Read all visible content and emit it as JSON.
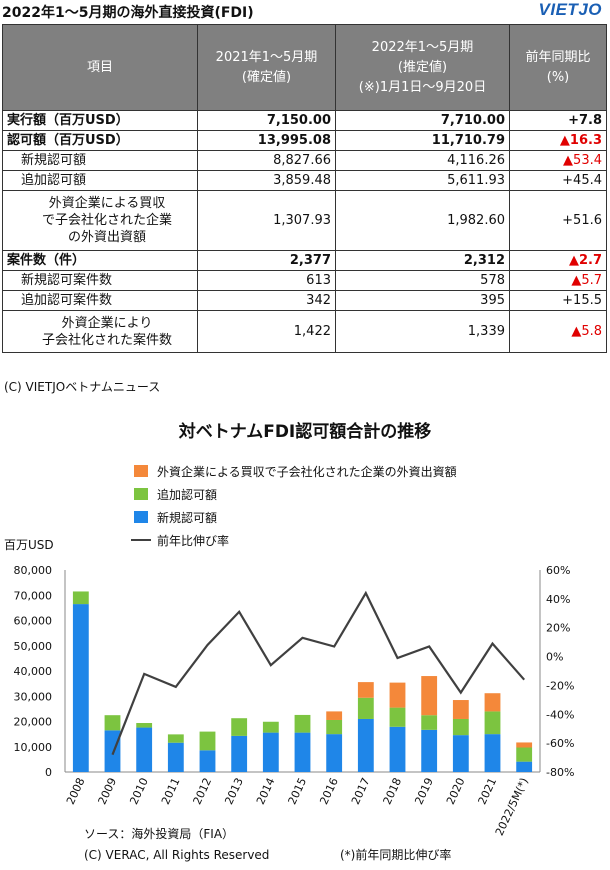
{
  "header": {
    "title": "2022年1～5月期の海外直接投資(FDI)",
    "logo": "VIETJO"
  },
  "table": {
    "columns": [
      "項目",
      "2021年1～5月期\n(確定値)",
      "2022年1～5月期\n(推定値)\n(※)1月1日～9月20日",
      "前年同期比\n(%)"
    ],
    "rows": [
      {
        "label": "実行額（百万USD）",
        "v2021": "7,150.00",
        "v2022": "7,710.00",
        "yoy": "+7.8",
        "bold": true,
        "sub": false,
        "red": false
      },
      {
        "label": "認可額（百万USD）",
        "v2021": "13,995.08",
        "v2022": "11,710.79",
        "yoy": "▲16.3",
        "bold": true,
        "sub": false,
        "red": true
      },
      {
        "label": "新規認可額",
        "v2021": "8,827.66",
        "v2022": "4,116.26",
        "yoy": "▲53.4",
        "bold": false,
        "sub": true,
        "red": true
      },
      {
        "label": "追加認可額",
        "v2021": "3,859.48",
        "v2022": "5,611.93",
        "yoy": "+45.4",
        "bold": false,
        "sub": true,
        "red": false
      },
      {
        "label": "外資企業による買収\nで子会社化された企業\nの外資出資額",
        "v2021": "1,307.93",
        "v2022": "1,982.60",
        "yoy": "+51.6",
        "bold": false,
        "sub": true,
        "red": false
      },
      {
        "label": "案件数（件）",
        "v2021": "2,377",
        "v2022": "2,312",
        "yoy": "▲2.7",
        "bold": true,
        "sub": false,
        "red": true
      },
      {
        "label": "新規認可案件数",
        "v2021": "613",
        "v2022": "578",
        "yoy": "▲5.7",
        "bold": false,
        "sub": true,
        "red": true
      },
      {
        "label": "追加認可案件数",
        "v2021": "342",
        "v2022": "395",
        "yoy": "+15.5",
        "bold": false,
        "sub": true,
        "red": false
      },
      {
        "label": "外資企業により\n子会社化された案件数",
        "v2021": "1,422",
        "v2022": "1,339",
        "yoy": "▲5.8",
        "bold": false,
        "sub": true,
        "red": true
      }
    ],
    "credit": "(C) VIETJOベトナムニュース"
  },
  "chart_data": {
    "type": "bar",
    "title": "対ベトナムFDI認可額合計の推移",
    "ylabel": "百万USD",
    "ylim": [
      0,
      80000
    ],
    "y2lim": [
      -80,
      60
    ],
    "yticks": [
      "0",
      "10,000",
      "20,000",
      "30,000",
      "40,000",
      "50,000",
      "60,000",
      "70,000",
      "80,000"
    ],
    "y2ticks": [
      "-80%",
      "-60%",
      "-40%",
      "-20%",
      "0%",
      "20%",
      "40%",
      "60%"
    ],
    "categories": [
      "2008",
      "2009",
      "2010",
      "2011",
      "2012",
      "2013",
      "2014",
      "2015",
      "2016",
      "2017",
      "2018",
      "2019",
      "2020",
      "2021",
      "2022/5M(*)"
    ],
    "series": [
      {
        "name": "新規認可額",
        "color": "#1f86e8",
        "values": [
          66500,
          16500,
          17600,
          11600,
          8600,
          14300,
          15600,
          15600,
          15000,
          21000,
          17900,
          16700,
          14600,
          15000,
          4100
        ]
      },
      {
        "name": "追加認可額",
        "color": "#7cc440",
        "values": [
          5000,
          6000,
          1800,
          3300,
          7400,
          7000,
          4300,
          7000,
          5600,
          8400,
          7600,
          5800,
          6400,
          9000,
          5600
        ]
      },
      {
        "name": "外資企業による買収で子会社化された企業の外資出資額",
        "color": "#f4883a",
        "values": [
          0,
          0,
          0,
          0,
          0,
          0,
          0,
          0,
          3400,
          6200,
          9900,
          15500,
          7500,
          7200,
          2000
        ]
      },
      {
        "name": "前年比伸び率",
        "color": "#404040",
        "axis": "right",
        "values": [
          null,
          -68,
          -12,
          -21,
          8,
          31,
          -6,
          13,
          7,
          44,
          -1,
          7,
          -25,
          9,
          -16
        ]
      }
    ],
    "legend": "top",
    "grid": false,
    "notes": [
      "ソース：海外投資局（FIA）",
      "(C) VERAC, All Rights Reserved",
      "(*)前年同期比伸び率"
    ]
  }
}
